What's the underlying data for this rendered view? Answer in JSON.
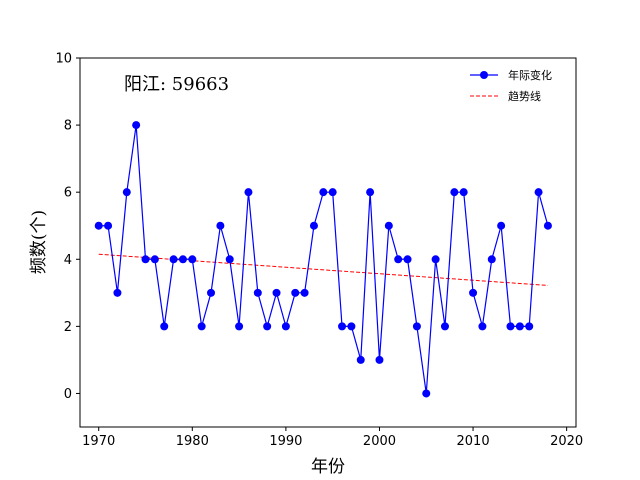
{
  "chart_data": {
    "type": "line",
    "xlabel": "年份",
    "ylabel": "频数(个)",
    "annotation": "阳江: 59663",
    "xlim": [
      1968,
      2021
    ],
    "ylim": [
      -1,
      10
    ],
    "xticks": [
      1970,
      1980,
      1990,
      2000,
      2010,
      2020
    ],
    "yticks": [
      0,
      2,
      4,
      6,
      8,
      10
    ],
    "grid": false,
    "legend_position": "top-right",
    "series": [
      {
        "name": "年际变化",
        "color": "#0000ff",
        "marker": "circle",
        "x": [
          1970,
          1971,
          1972,
          1973,
          1974,
          1975,
          1976,
          1977,
          1978,
          1979,
          1980,
          1981,
          1982,
          1983,
          1984,
          1985,
          1986,
          1987,
          1988,
          1989,
          1990,
          1991,
          1992,
          1993,
          1994,
          1995,
          1996,
          1997,
          1998,
          1999,
          2000,
          2001,
          2002,
          2003,
          2004,
          2005,
          2006,
          2007,
          2008,
          2009,
          2010,
          2011,
          2012,
          2013,
          2014,
          2015,
          2016,
          2017,
          2018
        ],
        "y": [
          5,
          5,
          3,
          6,
          8,
          4,
          4,
          2,
          4,
          4,
          4,
          2,
          3,
          5,
          4,
          2,
          6,
          3,
          2,
          3,
          2,
          3,
          3,
          5,
          6,
          6,
          2,
          2,
          1,
          6,
          1,
          5,
          4,
          4,
          2,
          0,
          4,
          2,
          6,
          6,
          3,
          2,
          4,
          5,
          2,
          2,
          2,
          6,
          5
        ]
      },
      {
        "name": "趋势线",
        "color": "#ff0000",
        "style": "dashed",
        "x": [
          1970,
          2018
        ],
        "y": [
          4.15,
          3.22
        ]
      }
    ]
  }
}
